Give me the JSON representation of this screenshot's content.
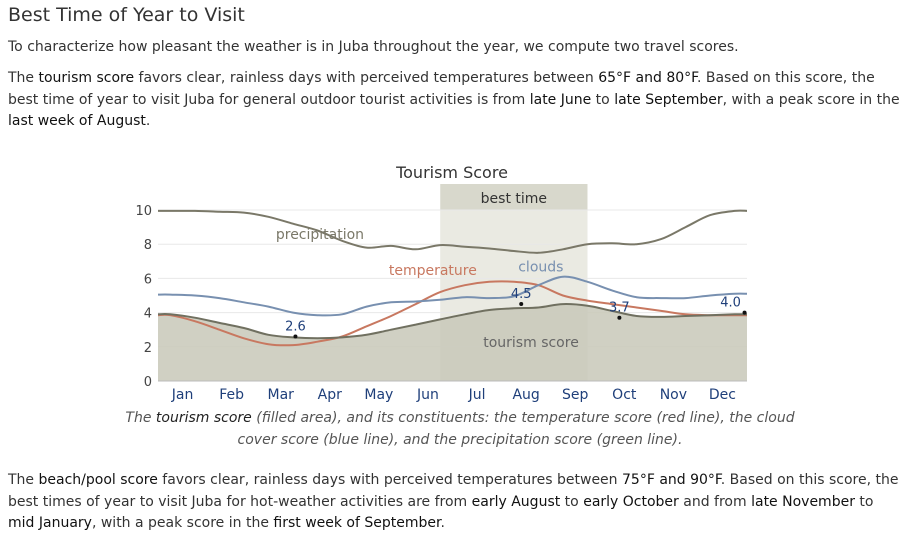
{
  "section": {
    "title": "Best Time of Year to Visit",
    "intro": "To characterize how pleasant the weather is in Juba throughout the year, we compute two travel scores."
  },
  "tourism_paragraph": {
    "p1": "The ",
    "term": "tourism score",
    "p2": " favors clear, rainless days with perceived temperatures between ",
    "range": "65°F and 80°F",
    "p3": ". Based on this score, the best time of year to visit Juba for general outdoor tourist activities is from ",
    "start": "late June",
    "p4": " to ",
    "end": "late September",
    "p5": ", with a peak score in the ",
    "peak": "last week of August",
    "p6": "."
  },
  "caption": {
    "c1": "The ",
    "term": "tourism score",
    "c2": " (filled area), and its constituents: the temperature score (red line), the cloud cover score (blue line), and the precipitation score (green line)."
  },
  "beach_paragraph": {
    "p1": "The ",
    "term": "beach/pool score",
    "p2": " favors clear, rainless days with perceived temperatures between ",
    "range": "75°F and 90°F",
    "p3": ". Based on this score, the best times of year to visit Juba for hot-weather activities are from ",
    "s1": "early August",
    "p4": " to ",
    "e1": "early October",
    "p5": " and from ",
    "s2": "late November",
    "p6": " to ",
    "e2": "mid January",
    "p7": ", with a peak score in the ",
    "peak": "first week of September",
    "p8": "."
  },
  "chart_data": {
    "type": "area",
    "title": "Tourism Score",
    "best_time_label": "best time",
    "best_time_range": [
      5.75,
      8.75
    ],
    "ylim": [
      0,
      10
    ],
    "yticks": [
      0,
      2,
      4,
      6,
      8,
      10
    ],
    "categories": [
      "Jan",
      "Feb",
      "Mar",
      "Apr",
      "May",
      "Jun",
      "Jul",
      "Aug",
      "Sep",
      "Oct",
      "Nov",
      "Dec"
    ],
    "x": [
      0,
      0.5,
      1,
      1.5,
      2,
      2.5,
      3,
      3.5,
      4,
      4.5,
      5,
      5.5,
      6,
      6.5,
      7,
      7.5,
      8,
      8.5,
      9,
      9.5,
      10,
      10.5,
      11,
      11.5
    ],
    "series": [
      {
        "name": "tourism score",
        "color": "#c8c8b8",
        "line_color": "#707060",
        "values": [
          3.9,
          3.7,
          3.4,
          3.1,
          2.7,
          2.55,
          2.5,
          2.55,
          2.7,
          3.0,
          3.3,
          3.6,
          3.9,
          4.15,
          4.25,
          4.3,
          4.5,
          4.4,
          4.1,
          3.8,
          3.75,
          3.8,
          3.85,
          3.9
        ]
      },
      {
        "name": "temperature",
        "color": "#c87860",
        "values": [
          3.85,
          3.5,
          3.0,
          2.5,
          2.15,
          2.1,
          2.3,
          2.6,
          3.2,
          3.8,
          4.5,
          5.2,
          5.6,
          5.8,
          5.8,
          5.6,
          5.0,
          4.7,
          4.5,
          4.3,
          4.1,
          3.9,
          3.85,
          3.85
        ]
      },
      {
        "name": "clouds",
        "color": "#7890b0",
        "values": [
          5.05,
          5.0,
          4.85,
          4.6,
          4.35,
          4.0,
          3.85,
          3.9,
          4.35,
          4.6,
          4.65,
          4.75,
          4.9,
          4.85,
          4.95,
          5.6,
          6.1,
          5.8,
          5.3,
          4.9,
          4.85,
          4.85,
          5.0,
          5.1
        ]
      },
      {
        "name": "precipitation",
        "color": "#7a7868",
        "values": [
          9.95,
          9.95,
          9.9,
          9.85,
          9.6,
          9.2,
          8.8,
          8.2,
          7.8,
          7.9,
          7.7,
          7.95,
          7.85,
          7.75,
          7.6,
          7.5,
          7.7,
          8.0,
          8.05,
          8.0,
          8.3,
          9.0,
          9.7,
          9.95
        ]
      }
    ],
    "annotations": [
      {
        "label": "2.6",
        "x": 2.8,
        "y": 2.6
      },
      {
        "label": "4.5",
        "x": 7.4,
        "y": 4.5
      },
      {
        "label": "3.7",
        "x": 9.4,
        "y": 3.7
      },
      {
        "label": "4.0",
        "x": 11.95,
        "y": 4.0
      }
    ],
    "series_labels": [
      {
        "name": "precipitation",
        "x": 3.3,
        "y": 8.3
      },
      {
        "name": "temperature",
        "x": 5.6,
        "y": 6.2
      },
      {
        "name": "clouds",
        "x": 7.8,
        "y": 6.4
      },
      {
        "name": "tourism score",
        "x": 7.6,
        "y": 2.0
      }
    ],
    "grid": true
  }
}
